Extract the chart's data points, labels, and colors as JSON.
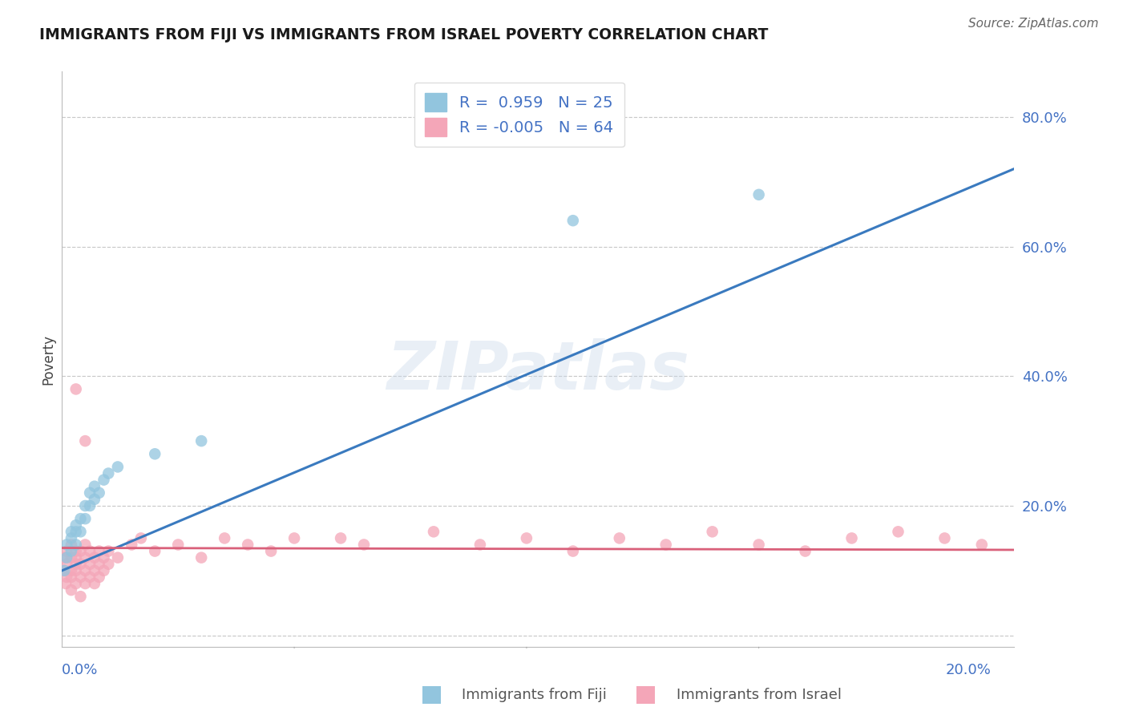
{
  "title": "IMMIGRANTS FROM FIJI VS IMMIGRANTS FROM ISRAEL POVERTY CORRELATION CHART",
  "source": "Source: ZipAtlas.com",
  "ylabel": "Poverty",
  "fiji_R": 0.959,
  "fiji_N": 25,
  "israel_R": -0.005,
  "israel_N": 64,
  "fiji_color": "#92c5de",
  "fiji_line_color": "#3a7abf",
  "israel_color": "#f4a6b8",
  "israel_line_color": "#d9607a",
  "watermark": "ZIPatlas",
  "x_range": [
    0.0,
    0.205
  ],
  "y_range": [
    -0.018,
    0.87
  ],
  "y_ticks": [
    0.0,
    0.2,
    0.4,
    0.6,
    0.8
  ],
  "y_tick_labels": [
    "",
    "20.0%",
    "40.0%",
    "60.0%",
    "80.0%"
  ],
  "fiji_x": [
    0.0005,
    0.001,
    0.001,
    0.002,
    0.002,
    0.002,
    0.003,
    0.003,
    0.003,
    0.004,
    0.004,
    0.005,
    0.005,
    0.006,
    0.006,
    0.007,
    0.007,
    0.008,
    0.009,
    0.01,
    0.012,
    0.02,
    0.03,
    0.11,
    0.15
  ],
  "fiji_y": [
    0.1,
    0.12,
    0.14,
    0.13,
    0.15,
    0.16,
    0.14,
    0.16,
    0.17,
    0.16,
    0.18,
    0.18,
    0.2,
    0.2,
    0.22,
    0.21,
    0.23,
    0.22,
    0.24,
    0.25,
    0.26,
    0.28,
    0.3,
    0.64,
    0.68
  ],
  "israel_x": [
    0.0003,
    0.0005,
    0.0008,
    0.001,
    0.001,
    0.001,
    0.002,
    0.002,
    0.002,
    0.002,
    0.002,
    0.003,
    0.003,
    0.003,
    0.003,
    0.003,
    0.004,
    0.004,
    0.004,
    0.004,
    0.005,
    0.005,
    0.005,
    0.005,
    0.006,
    0.006,
    0.006,
    0.007,
    0.007,
    0.007,
    0.008,
    0.008,
    0.008,
    0.009,
    0.009,
    0.01,
    0.01,
    0.012,
    0.015,
    0.017,
    0.02,
    0.025,
    0.03,
    0.035,
    0.04,
    0.045,
    0.05,
    0.06,
    0.065,
    0.08,
    0.09,
    0.1,
    0.11,
    0.12,
    0.13,
    0.14,
    0.15,
    0.16,
    0.17,
    0.18,
    0.19,
    0.198,
    0.003,
    0.005
  ],
  "israel_y": [
    0.1,
    0.12,
    0.08,
    0.11,
    0.13,
    0.09,
    0.1,
    0.12,
    0.14,
    0.07,
    0.09,
    0.11,
    0.13,
    0.08,
    0.1,
    0.12,
    0.09,
    0.11,
    0.13,
    0.06,
    0.1,
    0.12,
    0.08,
    0.14,
    0.11,
    0.09,
    0.13,
    0.1,
    0.12,
    0.08,
    0.11,
    0.13,
    0.09,
    0.1,
    0.12,
    0.11,
    0.13,
    0.12,
    0.14,
    0.15,
    0.13,
    0.14,
    0.12,
    0.15,
    0.14,
    0.13,
    0.15,
    0.15,
    0.14,
    0.16,
    0.14,
    0.15,
    0.13,
    0.15,
    0.14,
    0.16,
    0.14,
    0.13,
    0.15,
    0.16,
    0.15,
    0.14,
    0.38,
    0.3
  ],
  "fiji_line_x0": 0.0,
  "fiji_line_y0": 0.1,
  "fiji_line_x1": 0.205,
  "fiji_line_y1": 0.72,
  "israel_line_x0": 0.0,
  "israel_line_y0": 0.135,
  "israel_line_x1": 0.205,
  "israel_line_y1": 0.132
}
